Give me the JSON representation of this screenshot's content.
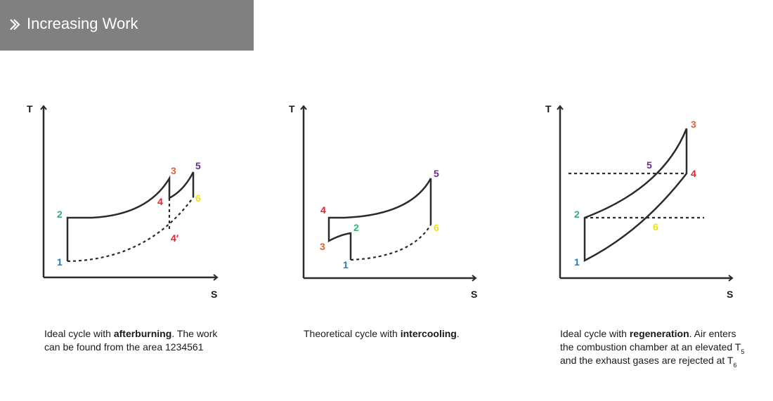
{
  "header": {
    "title": "Increasing Work",
    "icon": "double-chevron-right-icon"
  },
  "colors": {
    "p1": "#1f7cc1",
    "p2": "#2bb673",
    "p3": "#f15a29",
    "p4": "#ed1c24",
    "p5": "#662d91",
    "p6": "#f2e20b",
    "line": "#2b2b2b",
    "header_bg": "#808080"
  },
  "diagrams": [
    {
      "axis_y": "T",
      "axis_x": "S",
      "points": {
        "p1": "1",
        "p2": "2",
        "p3": "3",
        "p4": "4",
        "p4p": "4′",
        "p5": "5",
        "p6": "6"
      },
      "caption": {
        "line1_pre": "Ideal cycle with ",
        "line1_bold": "afterburning",
        "line1_post": ". The work",
        "line2": "can be found from the area 1234561"
      }
    },
    {
      "axis_y": "T",
      "axis_x": "S",
      "points": {
        "p1": "1",
        "p2": "2",
        "p3": "3",
        "p4": "4",
        "p5": "5",
        "p6": "6"
      },
      "caption": {
        "pre": "Theoretical cycle with ",
        "bold": "intercooling",
        "post": "."
      }
    },
    {
      "axis_y": "T",
      "axis_x": "S",
      "points": {
        "p1": "1",
        "p2": "2",
        "p3": "3",
        "p4": "4",
        "p5": "5",
        "p6": "6"
      },
      "caption": {
        "line1_pre": "Ideal cycle with ",
        "line1_bold": "regeneration",
        "line1_post": ". Air enters",
        "line2_pre": "the combustion chamber at an elevated T",
        "line2_sub": "5",
        "line3_pre": "and the exhaust gases are rejected at T",
        "line3_sub": "6"
      }
    }
  ]
}
